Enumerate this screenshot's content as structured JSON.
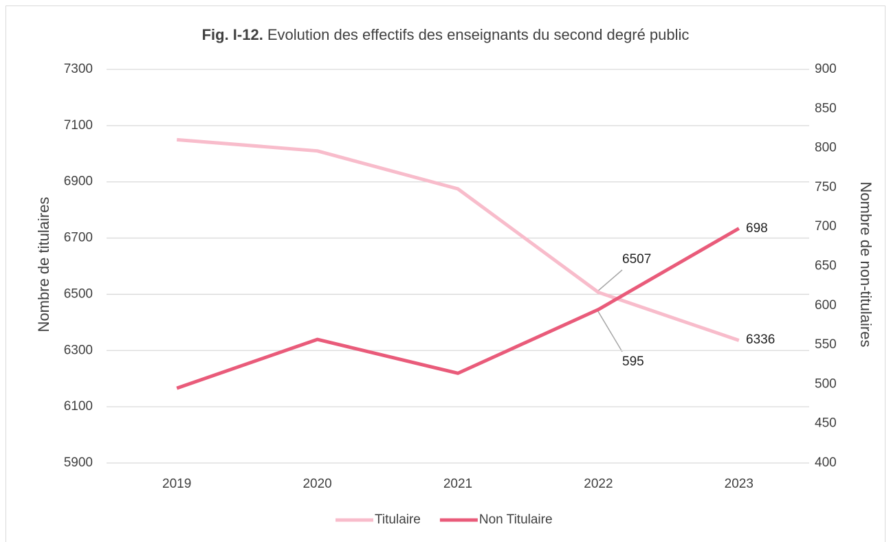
{
  "chart_data": {
    "type": "line",
    "title_label": "Fig. I-12.",
    "title": "Evolution des effectifs des enseignants du second degré public",
    "y_label": "Nombre de titulaires",
    "y2_label": "Nombre de non-titulaires",
    "categories": [
      "2019",
      "2020",
      "2021",
      "2022",
      "2023"
    ],
    "series": [
      {
        "name": "Titulaire",
        "color": "#f8bccb",
        "values": [
          7050,
          7010,
          6875,
          6507,
          6336
        ],
        "value_labels": [
          null,
          null,
          null,
          "6507",
          "6336"
        ]
      },
      {
        "name": "Non Titulaire",
        "color": "#e95b7a",
        "axis": "y2",
        "values": [
          495,
          557,
          514,
          595,
          698
        ],
        "value_labels": [
          null,
          null,
          null,
          "595",
          "698"
        ]
      }
    ],
    "ylim": [
      5900,
      7300
    ],
    "yticks": [
      5900,
      6100,
      6300,
      6500,
      6700,
      6900,
      7100,
      7300
    ],
    "y2lim": [
      400,
      900
    ],
    "y2ticks": [
      400,
      450,
      500,
      550,
      600,
      650,
      700,
      750,
      800,
      850,
      900
    ],
    "grid": true,
    "legend": "bottom"
  }
}
